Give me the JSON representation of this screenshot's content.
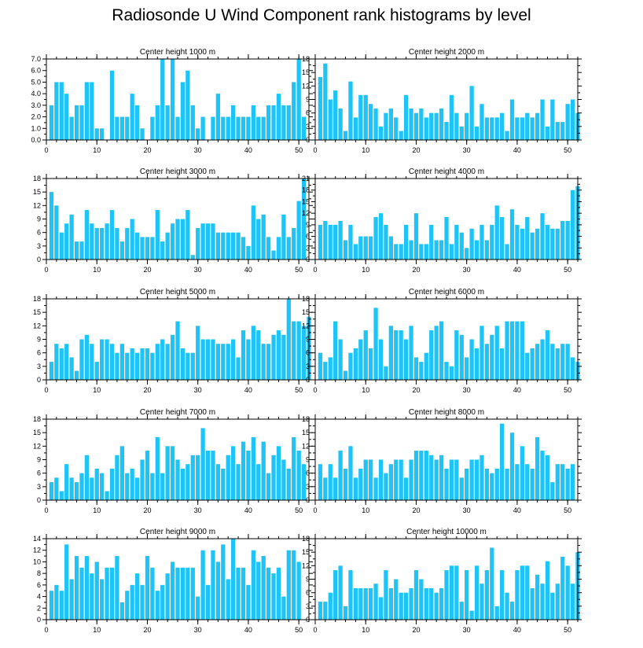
{
  "title": "Radiosonde U Wind Component rank histograms by level",
  "colors": {
    "bar": "#1ec3f7",
    "axis": "#000000"
  },
  "chart_data": [
    {
      "type": "bar",
      "title": "Center height 1000 m",
      "xlim": [
        0,
        52
      ],
      "xticks": [
        0,
        10,
        20,
        30,
        40,
        50
      ],
      "ylim": [
        0,
        7
      ],
      "yticks": [
        "0.0",
        "1.0",
        "2.0",
        "3.0",
        "4.0",
        "5.0",
        "6.0",
        "7.0"
      ],
      "values": [
        3,
        5,
        5,
        4,
        2,
        3,
        3,
        5,
        5,
        1,
        1,
        0,
        6,
        2,
        2,
        2,
        4,
        3,
        1,
        0,
        2,
        3,
        7,
        3,
        7,
        2,
        5,
        6,
        3,
        1,
        2,
        0,
        2,
        4,
        2,
        2,
        3,
        2,
        2,
        2,
        3,
        2,
        2,
        3,
        3,
        4,
        3,
        3,
        5,
        7,
        2
      ]
    },
    {
      "type": "bar",
      "title": "Center height 2000 m",
      "xlim": [
        0,
        52
      ],
      "xticks": [
        0,
        10,
        20,
        30,
        40,
        50
      ],
      "ylim": [
        0,
        18
      ],
      "yticks": [
        "0",
        "3",
        "6",
        "9",
        "12",
        "15",
        "18"
      ],
      "values": [
        14,
        17,
        9,
        11,
        7,
        2,
        13,
        5,
        10,
        10,
        8,
        7,
        3,
        6,
        7,
        5,
        2,
        10,
        7,
        6,
        7,
        5,
        6,
        6,
        7,
        4,
        10,
        6,
        3,
        6,
        12,
        3,
        8,
        5,
        5,
        5,
        6,
        2,
        9,
        5,
        5,
        6,
        5,
        6,
        9,
        3,
        9,
        4,
        4,
        8,
        9,
        6
      ]
    },
    {
      "type": "bar",
      "title": "Center height 3000 m",
      "xlim": [
        0,
        52
      ],
      "xticks": [
        0,
        10,
        20,
        30,
        40,
        50
      ],
      "ylim": [
        0,
        18
      ],
      "yticks": [
        "0",
        "3",
        "6",
        "9",
        "12",
        "15",
        "18"
      ],
      "values": [
        15,
        12,
        6,
        8,
        10,
        4,
        4,
        11,
        8,
        7,
        7,
        8,
        11,
        7,
        4,
        7,
        9,
        6,
        5,
        5,
        5,
        11,
        4,
        6,
        8,
        9,
        9,
        11,
        1,
        7,
        8,
        8,
        8,
        6,
        6,
        6,
        6,
        6,
        5,
        3,
        12,
        9,
        10,
        5,
        2,
        5,
        10,
        5,
        7,
        13,
        18
      ]
    },
    {
      "type": "bar",
      "title": "Center height 4000 m",
      "xlim": [
        0,
        52
      ],
      "xticks": [
        0,
        10,
        20,
        30,
        40,
        50
      ],
      "ylim": [
        0,
        21
      ],
      "yticks": [
        "0",
        "3",
        "6",
        "9",
        "12",
        "15",
        "18",
        "21"
      ],
      "values": [
        9,
        10,
        9,
        9,
        10,
        5,
        9,
        4,
        6,
        6,
        6,
        11,
        12,
        9,
        6,
        4,
        4,
        9,
        5,
        12,
        4,
        4,
        9,
        5,
        5,
        11,
        4,
        9,
        7,
        3,
        8,
        5,
        9,
        5,
        9,
        14,
        11,
        4,
        13,
        9,
        8,
        11,
        7,
        8,
        12,
        9,
        8,
        8,
        10,
        10,
        18,
        19
      ]
    },
    {
      "type": "bar",
      "title": "Center height 5000 m",
      "xlim": [
        0,
        52
      ],
      "xticks": [
        0,
        10,
        20,
        30,
        40,
        50
      ],
      "ylim": [
        0,
        18
      ],
      "yticks": [
        "0",
        "3",
        "6",
        "9",
        "12",
        "15",
        "18"
      ],
      "values": [
        4,
        8,
        7,
        8,
        5,
        2,
        9,
        10,
        8,
        4,
        9,
        9,
        8,
        6,
        8,
        6,
        7,
        6,
        7,
        7,
        6,
        8,
        9,
        8,
        10,
        13,
        7,
        6,
        6,
        12,
        9,
        9,
        9,
        8,
        8,
        8,
        9,
        5,
        11,
        9,
        12,
        11,
        8,
        8,
        10,
        11,
        10,
        18,
        13,
        13,
        12,
        14
      ]
    },
    {
      "type": "bar",
      "title": "Center height 6000 m",
      "xlim": [
        0,
        52
      ],
      "xticks": [
        0,
        10,
        20,
        30,
        40,
        50
      ],
      "ylim": [
        0,
        18
      ],
      "yticks": [
        "0",
        "3",
        "6",
        "9",
        "12",
        "15",
        "18"
      ],
      "values": [
        6,
        4,
        5,
        13,
        9,
        2,
        6,
        7,
        9,
        11,
        7,
        16,
        9,
        3,
        12,
        11,
        11,
        9,
        12,
        5,
        4,
        6,
        11,
        12,
        13,
        4,
        3,
        11,
        10,
        5,
        9,
        7,
        12,
        8,
        10,
        12,
        7,
        13,
        13,
        13,
        13,
        6,
        7,
        8,
        9,
        11,
        8,
        7,
        8,
        8,
        5,
        4
      ]
    },
    {
      "type": "bar",
      "title": "Center height 7000 m",
      "xlim": [
        0,
        52
      ],
      "xticks": [
        0,
        10,
        20,
        30,
        40,
        50
      ],
      "ylim": [
        0,
        18
      ],
      "yticks": [
        "0",
        "3",
        "6",
        "9",
        "12",
        "15",
        "18"
      ],
      "values": [
        4,
        5,
        2,
        8,
        5,
        4,
        6,
        10,
        5,
        7,
        6,
        2,
        7,
        10,
        12,
        6,
        7,
        5,
        9,
        11,
        6,
        14,
        6,
        12,
        12,
        9,
        7,
        8,
        10,
        10,
        16,
        11,
        11,
        8,
        7,
        10,
        12,
        8,
        13,
        11,
        14,
        8,
        13,
        6,
        10,
        12,
        9,
        7,
        14,
        11,
        8
      ]
    },
    {
      "type": "bar",
      "title": "Center height 8000 m",
      "xlim": [
        0,
        52
      ],
      "xticks": [
        0,
        10,
        20,
        30,
        40,
        50
      ],
      "ylim": [
        0,
        18
      ],
      "yticks": [
        "0",
        "3",
        "6",
        "9",
        "12",
        "15",
        "18"
      ],
      "values": [
        8,
        5,
        8,
        5,
        11,
        7,
        12,
        5,
        7,
        9,
        9,
        5,
        9,
        6,
        8,
        9,
        9,
        5,
        9,
        11,
        11,
        11,
        10,
        9,
        10,
        7,
        9,
        9,
        5,
        7,
        9,
        9,
        10,
        7,
        6,
        7,
        17,
        7,
        15,
        8,
        12,
        8,
        7,
        14,
        11,
        10,
        4,
        8,
        8,
        7,
        8
      ]
    },
    {
      "type": "bar",
      "title": "Center height 9000 m",
      "xlim": [
        0,
        52
      ],
      "xticks": [
        0,
        10,
        20,
        30,
        40,
        50
      ],
      "ylim": [
        0,
        14
      ],
      "yticks": [
        "0",
        "2",
        "4",
        "6",
        "8",
        "10",
        "12",
        "14"
      ],
      "values": [
        5,
        6,
        5,
        13,
        7,
        11,
        9,
        11,
        8,
        10,
        7,
        9,
        9,
        11,
        3,
        5,
        6,
        8,
        6,
        11,
        9,
        5,
        6,
        8,
        10,
        9,
        9,
        9,
        9,
        4,
        12,
        6,
        12,
        10,
        13,
        7,
        14,
        9,
        9,
        6,
        12,
        10,
        11,
        9,
        8,
        9,
        4,
        12,
        12,
        10
      ]
    },
    {
      "type": "bar",
      "title": "Center height 10000 m",
      "xlim": [
        0,
        52
      ],
      "xticks": [
        0,
        10,
        20,
        30,
        40,
        50
      ],
      "ylim": [
        0,
        18
      ],
      "yticks": [
        "0",
        "3",
        "6",
        "9",
        "12",
        "15",
        "18"
      ],
      "values": [
        4,
        4,
        6,
        11,
        12,
        3,
        11,
        7,
        7,
        7,
        7,
        8,
        5,
        11,
        7,
        9,
        6,
        6,
        7,
        11,
        9,
        7,
        7,
        6,
        7,
        11,
        12,
        12,
        4,
        11,
        2,
        12,
        8,
        11,
        16,
        3,
        11,
        6,
        4,
        11,
        12,
        12,
        7,
        10,
        8,
        13,
        6,
        8,
        14,
        12,
        8,
        15
      ]
    }
  ]
}
